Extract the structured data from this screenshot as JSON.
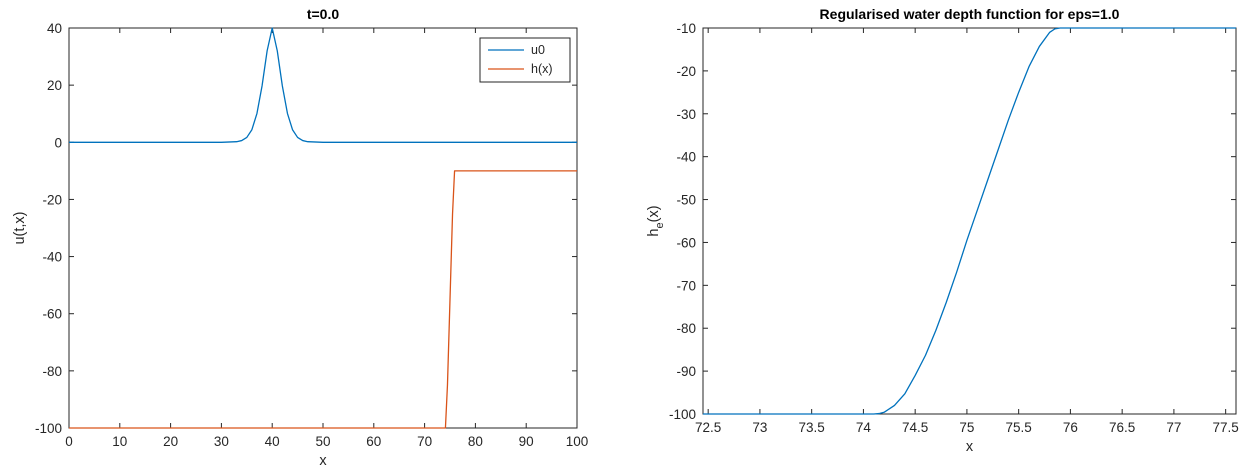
{
  "chart_data": [
    {
      "type": "line",
      "title": "t=0.0",
      "xlabel": "x",
      "ylabel": "u(t,x)",
      "xlim": [
        0,
        100
      ],
      "ylim": [
        -100,
        40
      ],
      "xticks": [
        0,
        10,
        20,
        30,
        40,
        50,
        60,
        70,
        80,
        90,
        100
      ],
      "yticks": [
        40,
        20,
        0,
        -20,
        -40,
        -60,
        -80,
        -100
      ],
      "legend": "top-right",
      "series": [
        {
          "name": "u0",
          "color": "#0072BD",
          "x": [
            0,
            30,
            33,
            34,
            35,
            36,
            37,
            38,
            39,
            40,
            41,
            42,
            43,
            44,
            45,
            46,
            47,
            50,
            100
          ],
          "y": [
            0,
            0,
            0.2,
            0.6,
            1.7,
            4.4,
            10.1,
            19.7,
            32.0,
            40.0,
            32.0,
            19.7,
            10.1,
            4.4,
            1.7,
            0.6,
            0.2,
            0,
            0
          ]
        },
        {
          "name": "h(x)",
          "color": "#D95319",
          "x": [
            0,
            74.1,
            74.5,
            75.0,
            75.5,
            75.9,
            100
          ],
          "y": [
            -100,
            -100,
            -85,
            -55,
            -25,
            -10,
            -10
          ]
        }
      ]
    },
    {
      "type": "line",
      "title": "Regularised water depth function for eps=1.0",
      "xlabel": "x",
      "ylabel": "h_e(x)",
      "ylabel_main": "h",
      "ylabel_sub": "e",
      "ylabel_tail": "(x)",
      "xlim": [
        72.45,
        77.6
      ],
      "ylim": [
        -100,
        -10
      ],
      "xticks": [
        72.5,
        73,
        73.5,
        74,
        74.5,
        75,
        75.5,
        76,
        76.5,
        77,
        77.5
      ],
      "yticks": [
        -10,
        -20,
        -30,
        -40,
        -50,
        -60,
        -70,
        -80,
        -90,
        -100
      ],
      "series": [
        {
          "color": "#0072BD",
          "x": [
            72.45,
            74.1,
            74.15,
            74.2,
            74.3,
            74.4,
            74.5,
            74.6,
            74.7,
            74.8,
            74.9,
            75.0,
            75.1,
            75.2,
            75.3,
            75.4,
            75.5,
            75.6,
            75.7,
            75.8,
            75.85,
            75.9,
            77.6
          ],
          "y": [
            -100,
            -100,
            -99.9,
            -99.6,
            -98.0,
            -95.3,
            -91.0,
            -86.3,
            -80.5,
            -74.0,
            -67.0,
            -59.5,
            -52.5,
            -45.5,
            -38.5,
            -31.5,
            -25.0,
            -19.0,
            -14.3,
            -11.0,
            -10.2,
            -10,
            -10
          ]
        }
      ]
    }
  ]
}
